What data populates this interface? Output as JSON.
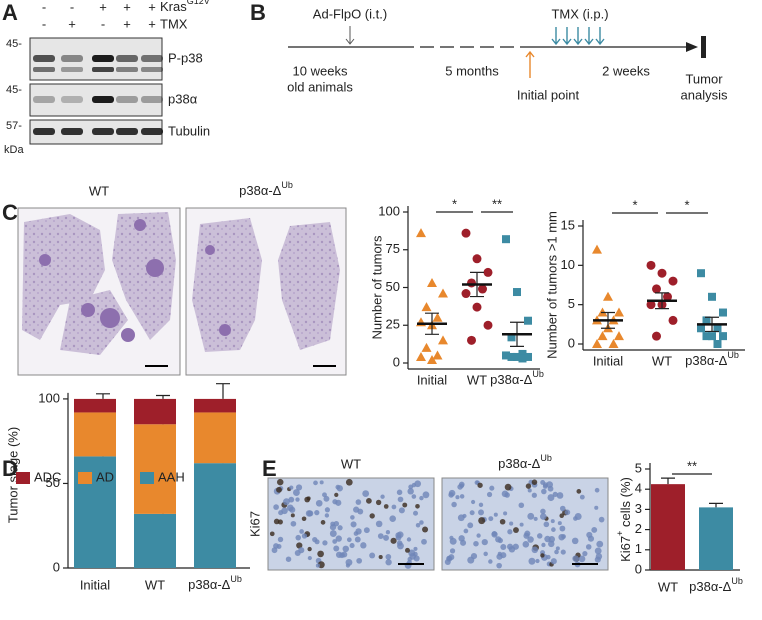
{
  "panel_labels": [
    "A",
    "B",
    "C",
    "D",
    "E"
  ],
  "panel_a": {
    "conditions": [
      {
        "label": {
          "text": "Kras",
          "sup": "G12V"
        },
        "signs": [
          "-",
          "-",
          "+",
          "+",
          "+"
        ]
      },
      {
        "label": "TMX",
        "signs": [
          "-",
          "+",
          "-",
          "+",
          "+"
        ]
      }
    ],
    "blots": [
      {
        "label": "P-p38",
        "marker": "45-"
      },
      {
        "label": "p38α",
        "marker": "45-"
      },
      {
        "label": "Tubulin",
        "marker": "57-"
      }
    ],
    "unit": "kDa"
  },
  "panel_b": {
    "ad_flpo": "Ad-FlpO (i.t.)",
    "tmx": "TMX (i.p.)",
    "start": [
      "10 weeks",
      "old animals"
    ],
    "interval1": "5 months",
    "initial_point": "Initial point",
    "interval2": "2 weeks",
    "end": [
      "Tumor",
      "analysis"
    ]
  },
  "panel_c": {
    "images": [
      "WT",
      {
        "text": "p38α-Δ",
        "sup": "Ub"
      }
    ]
  },
  "panel_e": {
    "images": [
      "WT",
      {
        "text": "p38α-Δ",
        "sup": "Ub"
      }
    ],
    "stain": "Ki67"
  },
  "chart_data": [
    {
      "type": "dot",
      "ylabel": "Number of tumors",
      "categories": [
        "Initial",
        "WT",
        {
          "text": "p38α-Δ",
          "sup": "Ub"
        }
      ],
      "groups": [
        {
          "color": "#e8882d",
          "marker": "triangle",
          "values": [
            86,
            53,
            46,
            37,
            30,
            27,
            25,
            15,
            10,
            5,
            4,
            2
          ],
          "mean": 26,
          "sem": 7
        },
        {
          "color": "#9e1f2a",
          "marker": "circle",
          "values": [
            86,
            69,
            60,
            53,
            49,
            46,
            37,
            25,
            15
          ],
          "mean": 52,
          "sem": 8
        },
        {
          "color": "#3d8ba3",
          "marker": "square",
          "values": [
            82,
            47,
            28,
            17,
            6,
            5,
            4,
            4,
            4,
            3
          ],
          "mean": 19,
          "sem": 8
        }
      ],
      "significance": [
        {
          "from": 0,
          "to": 1,
          "label": "*"
        },
        {
          "from": 1,
          "to": 2,
          "label": "**"
        }
      ],
      "ylim": [
        0,
        100
      ],
      "yticks": [
        0,
        25,
        50,
        75,
        100
      ]
    },
    {
      "type": "dot",
      "ylabel": "Number of tumors >1 mm",
      "categories": [
        "Initial",
        "WT",
        {
          "text": "p38α-Δ",
          "sup": "Ub"
        }
      ],
      "groups": [
        {
          "color": "#e8882d",
          "marker": "triangle",
          "values": [
            12,
            6,
            4,
            4,
            3,
            3,
            2,
            1,
            1,
            0,
            0
          ],
          "mean": 3,
          "sem": 1
        },
        {
          "color": "#9e1f2a",
          "marker": "circle",
          "values": [
            10,
            9,
            8,
            7,
            6,
            5,
            5,
            3,
            1
          ],
          "mean": 5.5,
          "sem": 1
        },
        {
          "color": "#3d8ba3",
          "marker": "square",
          "values": [
            9,
            6,
            4,
            3,
            2,
            2,
            1,
            1,
            1,
            0
          ],
          "mean": 2.5,
          "sem": 0.9
        }
      ],
      "significance": [
        {
          "from": 0,
          "to": 1,
          "label": "*"
        },
        {
          "from": 1,
          "to": 2,
          "label": "*"
        }
      ],
      "ylim": [
        0,
        15
      ],
      "yticks": [
        0,
        5,
        10,
        15
      ]
    },
    {
      "type": "stacked",
      "ylabel": "Tumor stage (%)",
      "categories": [
        "Initial",
        "WT",
        {
          "text": "p38α-Δ",
          "sup": "Ub"
        }
      ],
      "series": [
        {
          "name": "AAH",
          "color": "#3d8ba3",
          "values": [
            66,
            32,
            62
          ],
          "errors": [
            8,
            4,
            15
          ]
        },
        {
          "name": "AD",
          "color": "#e8882d",
          "values": [
            26,
            53,
            30
          ],
          "errors": [
            null,
            4,
            null
          ]
        },
        {
          "name": "ADC",
          "color": "#9e1f2a",
          "values": [
            8,
            15,
            8
          ],
          "errors": [
            3,
            2,
            9
          ]
        }
      ],
      "ylim": [
        0,
        110
      ],
      "yticks": [
        0,
        50,
        100
      ]
    },
    {
      "type": "bar",
      "ylabel": {
        "text": "Ki67",
        "sup": "+",
        "rest": " cells (%)"
      },
      "categories": [
        "WT",
        {
          "text": "p38α-Δ",
          "sup": "Ub"
        }
      ],
      "values": [
        4.25,
        3.1
      ],
      "errors": [
        0.3,
        0.2
      ],
      "colors": [
        "#9e1f2a",
        "#3d8ba3"
      ],
      "significance": [
        {
          "from": 0,
          "to": 1,
          "label": "**"
        }
      ],
      "ylim": [
        0,
        5
      ],
      "yticks": [
        0,
        1,
        2,
        3,
        4,
        5
      ]
    }
  ]
}
